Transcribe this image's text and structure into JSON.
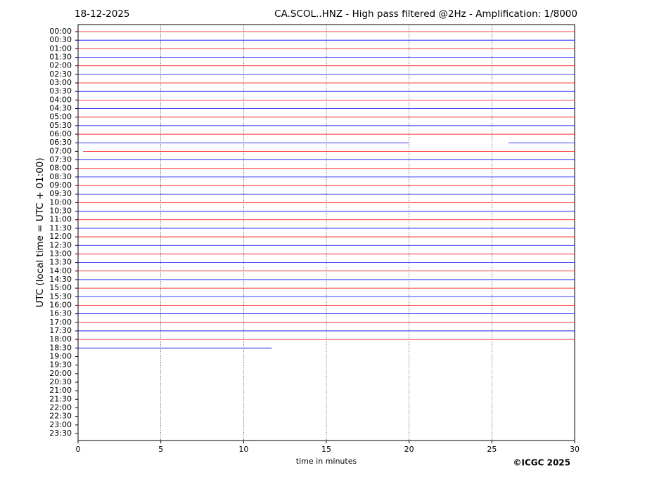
{
  "chart_data": {
    "type": "helicorder",
    "date": "18-12-2025",
    "title": "CA.SCOL..HNZ - High pass filtered @2Hz - Amplification: 1/8000",
    "xlabel": "time in minutes",
    "ylabel": "UTC (local time = UTC + 01:00)",
    "credit": "©ICGC 2025",
    "xlim": [
      0,
      30
    ],
    "xticks": [
      0,
      5,
      10,
      15,
      20,
      25,
      30
    ],
    "grid": true,
    "colors": [
      "#ff0000",
      "#0000ff"
    ],
    "categories": [
      "00:00",
      "00:30",
      "01:00",
      "01:30",
      "02:00",
      "02:30",
      "03:00",
      "03:30",
      "04:00",
      "04:30",
      "05:00",
      "05:30",
      "06:00",
      "06:30",
      "07:00",
      "07:30",
      "08:00",
      "08:30",
      "09:00",
      "09:30",
      "10:00",
      "10:30",
      "11:00",
      "11:30",
      "12:00",
      "12:30",
      "13:00",
      "13:30",
      "14:00",
      "14:30",
      "15:00",
      "15:30",
      "16:00",
      "16:30",
      "17:00",
      "17:30",
      "18:00",
      "18:30",
      "19:00",
      "19:30",
      "20:00",
      "20:30",
      "21:00",
      "21:30",
      "22:00",
      "22:30",
      "23:00",
      "23:30"
    ],
    "traces": [
      [
        [
          0,
          30
        ]
      ],
      [
        [
          0,
          30
        ]
      ],
      [
        [
          0,
          30
        ]
      ],
      [
        [
          0,
          30
        ]
      ],
      [
        [
          0,
          30
        ]
      ],
      [
        [
          0,
          30
        ]
      ],
      [
        [
          0,
          30
        ]
      ],
      [
        [
          0,
          30
        ]
      ],
      [
        [
          0,
          30
        ]
      ],
      [
        [
          0,
          30
        ]
      ],
      [
        [
          0,
          30
        ]
      ],
      [
        [
          0,
          30
        ]
      ],
      [
        [
          0,
          30
        ]
      ],
      [
        [
          0,
          20
        ],
        [
          26,
          30
        ]
      ],
      [
        [
          0.3,
          30
        ]
      ],
      [
        [
          0,
          30
        ]
      ],
      [
        [
          0,
          30
        ]
      ],
      [
        [
          0,
          30
        ]
      ],
      [
        [
          0,
          30
        ]
      ],
      [
        [
          0,
          30
        ]
      ],
      [
        [
          0,
          30
        ]
      ],
      [
        [
          0,
          30
        ]
      ],
      [
        [
          0,
          30
        ]
      ],
      [
        [
          0,
          30
        ]
      ],
      [
        [
          0,
          30
        ]
      ],
      [
        [
          0,
          30
        ]
      ],
      [
        [
          0,
          30
        ]
      ],
      [
        [
          0,
          30
        ]
      ],
      [
        [
          0,
          30
        ]
      ],
      [
        [
          0,
          30
        ]
      ],
      [
        [
          0,
          30
        ]
      ],
      [
        [
          0,
          30
        ]
      ],
      [
        [
          0,
          30
        ]
      ],
      [
        [
          0,
          30
        ]
      ],
      [
        [
          0,
          30
        ]
      ],
      [
        [
          0,
          30
        ]
      ],
      [
        [
          0,
          30
        ]
      ],
      [
        [
          0,
          11.7
        ]
      ]
    ]
  }
}
